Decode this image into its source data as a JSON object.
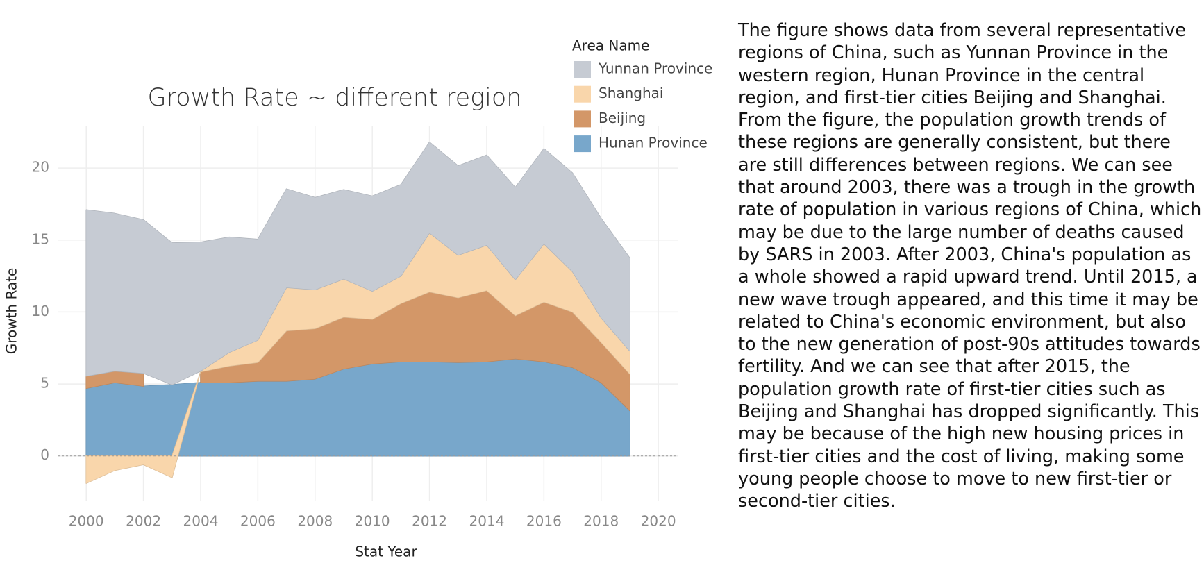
{
  "chart_data": {
    "type": "stacked_area",
    "title": "Growth Rate ~ different region",
    "x_label": "Stat Year",
    "y_label": "Growth Rate",
    "legend_title": "Area Name",
    "x": [
      2000,
      2001,
      2002,
      2003,
      2004,
      2005,
      2006,
      2007,
      2008,
      2009,
      2010,
      2011,
      2012,
      2013,
      2014,
      2015,
      2016,
      2017,
      2018,
      2019
    ],
    "series": [
      {
        "name": "Hunan Province",
        "color": "#78a7cb",
        "values": [
          4.7,
          5.1,
          4.85,
          4.95,
          5.1,
          5.1,
          5.2,
          5.2,
          5.35,
          6.05,
          6.4,
          6.55,
          6.55,
          6.5,
          6.55,
          6.75,
          6.55,
          6.15,
          5.1,
          3.15
        ]
      },
      {
        "name": "Beijing",
        "color": "#d39768",
        "values": [
          0.85,
          0.8,
          0.9,
          null,
          0.75,
          1.15,
          1.3,
          3.5,
          3.5,
          3.6,
          3.1,
          4.05,
          4.85,
          4.5,
          4.95,
          3.0,
          4.15,
          3.85,
          2.8,
          2.55
        ]
      },
      {
        "name": "Shanghai",
        "color": "#f9d6ab",
        "values": [
          -1.9,
          -1.0,
          -0.6,
          -1.5,
          0.05,
          0.95,
          1.55,
          3.0,
          2.7,
          2.65,
          1.95,
          1.9,
          4.1,
          2.95,
          3.15,
          2.5,
          4.05,
          2.8,
          1.7,
          1.6
        ]
      },
      {
        "name": "Yunnan Province",
        "color": "#c6cbd3",
        "values": [
          11.55,
          10.95,
          10.65,
          9.85,
          8.95,
          8.0,
          7.0,
          6.85,
          6.4,
          6.2,
          6.6,
          6.35,
          6.3,
          6.2,
          6.25,
          6.4,
          6.6,
          6.85,
          6.9,
          6.45
        ]
      }
    ],
    "xlim": [
      1999,
      2020.7
    ],
    "xticks": [
      2000,
      2002,
      2004,
      2006,
      2008,
      2010,
      2012,
      2014,
      2016,
      2018,
      2020
    ],
    "ylim": [
      -3.1,
      22.9
    ],
    "yticks": [
      0,
      5,
      10,
      15,
      20
    ],
    "grid": true
  },
  "description": "The figure shows data from several representative regions of China, such as Yunnan Province in the western region, Hunan Province in the central region, and first-tier cities Beijing and Shanghai. From the figure, the population growth trends of these regions are generally consistent, but there are still differences between regions. We can see that around 2003, there was a trough in the growth rate of population in various regions of China, which may be due to the large number of deaths caused by SARS in 2003. After 2003, China's population as a whole showed a rapid upward trend. Until 2015, a new wave trough appeared, and this time it may be related to China's economic environment, but also to the new generation of post-90s attitudes towards fertility. And we can see that after 2015, the population growth rate of first-tier cities such as Beijing and Shanghai has dropped significantly. This may be because of the high new housing prices in first-tier cities and the cost of living, making some young people choose to move to new first-tier or second-tier cities."
}
